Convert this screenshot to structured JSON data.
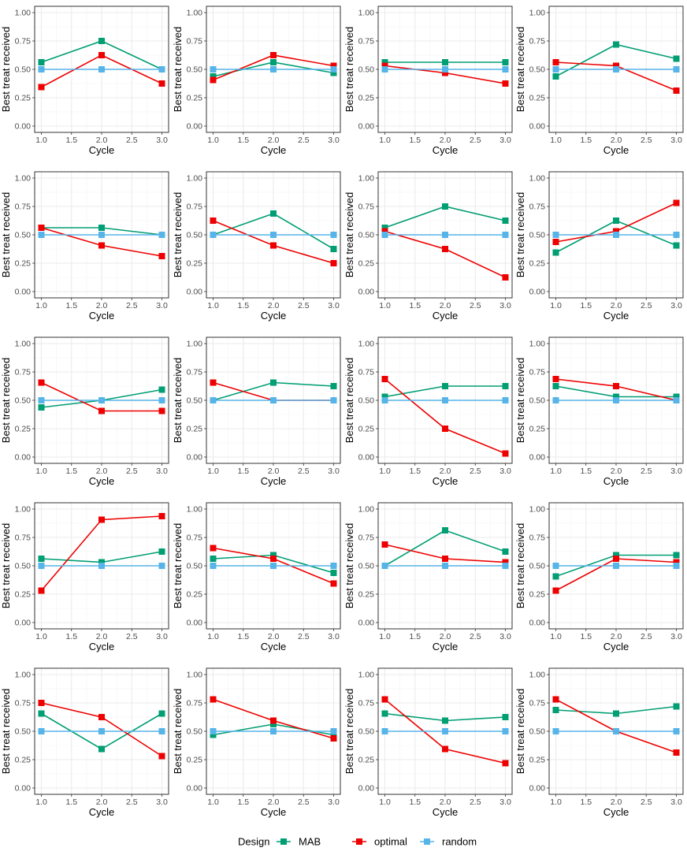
{
  "chart_data": {
    "type": "line",
    "layout": "small-multiples 5x4",
    "xlabel": "Cycle",
    "ylabel": "Best treat received",
    "x": [
      1,
      2,
      3
    ],
    "xlim": [
      1,
      3
    ],
    "ylim": [
      0,
      1
    ],
    "xticks": [
      "1.0",
      "1.5",
      "2.0",
      "2.5",
      "3.0"
    ],
    "yticks": [
      "0.00",
      "0.25",
      "0.50",
      "0.75",
      "1.00"
    ],
    "grid": true,
    "legend": {
      "title": "Design",
      "placement": "bottom",
      "entries": [
        {
          "name": "MAB",
          "color": "#009E73"
        },
        {
          "name": "optimal",
          "color": "#EE0000"
        },
        {
          "name": "random",
          "color": "#56B4E9"
        }
      ]
    },
    "panels": [
      {
        "series": [
          {
            "name": "MAB",
            "values": [
              0.5625,
              0.75,
              0.5
            ]
          },
          {
            "name": "optimal",
            "values": [
              0.34375,
              0.625,
              0.375
            ]
          },
          {
            "name": "random",
            "values": [
              0.5,
              0.5,
              0.5
            ]
          }
        ]
      },
      {
        "series": [
          {
            "name": "MAB",
            "values": [
              0.4375,
              0.5625,
              0.46875
            ]
          },
          {
            "name": "optimal",
            "values": [
              0.40625,
              0.625,
              0.53125
            ]
          },
          {
            "name": "random",
            "values": [
              0.5,
              0.5,
              0.5
            ]
          }
        ]
      },
      {
        "series": [
          {
            "name": "MAB",
            "values": [
              0.5625,
              0.5625,
              0.5625
            ]
          },
          {
            "name": "optimal",
            "values": [
              0.53125,
              0.46875,
              0.375
            ]
          },
          {
            "name": "random",
            "values": [
              0.5,
              0.5,
              0.5
            ]
          }
        ]
      },
      {
        "series": [
          {
            "name": "MAB",
            "values": [
              0.4375,
              0.71875,
              0.59375
            ]
          },
          {
            "name": "optimal",
            "values": [
              0.5625,
              0.53125,
              0.3125
            ]
          },
          {
            "name": "random",
            "values": [
              0.5,
              0.5,
              0.5
            ]
          }
        ]
      },
      {
        "series": [
          {
            "name": "MAB",
            "values": [
              0.5625,
              0.5625,
              0.5
            ]
          },
          {
            "name": "optimal",
            "values": [
              0.5625,
              0.40625,
              0.3125
            ]
          },
          {
            "name": "random",
            "values": [
              0.5,
              0.5,
              0.5
            ]
          }
        ]
      },
      {
        "series": [
          {
            "name": "MAB",
            "values": [
              0.5,
              0.6875,
              0.375
            ]
          },
          {
            "name": "optimal",
            "values": [
              0.625,
              0.40625,
              0.25
            ]
          },
          {
            "name": "random",
            "values": [
              0.5,
              0.5,
              0.5
            ]
          }
        ]
      },
      {
        "series": [
          {
            "name": "MAB",
            "values": [
              0.5625,
              0.75,
              0.625
            ]
          },
          {
            "name": "optimal",
            "values": [
              0.53125,
              0.375,
              0.125
            ]
          },
          {
            "name": "random",
            "values": [
              0.5,
              0.5,
              0.5
            ]
          }
        ]
      },
      {
        "series": [
          {
            "name": "MAB",
            "values": [
              0.34375,
              0.625,
              0.40625
            ]
          },
          {
            "name": "optimal",
            "values": [
              0.4375,
              0.53125,
              0.78125
            ]
          },
          {
            "name": "random",
            "values": [
              0.5,
              0.5,
              0.5
            ]
          }
        ]
      },
      {
        "series": [
          {
            "name": "MAB",
            "values": [
              0.4375,
              0.5,
              0.59375
            ]
          },
          {
            "name": "optimal",
            "values": [
              0.65625,
              0.40625,
              0.40625
            ]
          },
          {
            "name": "random",
            "values": [
              0.5,
              0.5,
              0.5
            ]
          }
        ]
      },
      {
        "series": [
          {
            "name": "MAB",
            "values": [
              0.5,
              0.65625,
              0.625
            ]
          },
          {
            "name": "optimal",
            "values": [
              0.65625,
              0.5,
              0.5
            ]
          },
          {
            "name": "random",
            "values": [
              0.5,
              0.5,
              0.5
            ]
          }
        ]
      },
      {
        "series": [
          {
            "name": "MAB",
            "values": [
              0.53125,
              0.625,
              0.625
            ]
          },
          {
            "name": "optimal",
            "values": [
              0.6875,
              0.25,
              0.03125
            ]
          },
          {
            "name": "random",
            "values": [
              0.5,
              0.5,
              0.5
            ]
          }
        ]
      },
      {
        "series": [
          {
            "name": "MAB",
            "values": [
              0.625,
              0.53125,
              0.53125
            ]
          },
          {
            "name": "optimal",
            "values": [
              0.6875,
              0.625,
              0.5
            ]
          },
          {
            "name": "random",
            "values": [
              0.5,
              0.5,
              0.5
            ]
          }
        ]
      },
      {
        "series": [
          {
            "name": "MAB",
            "values": [
              0.5625,
              0.53125,
              0.625
            ]
          },
          {
            "name": "optimal",
            "values": [
              0.28125,
              0.90625,
              0.9375
            ]
          },
          {
            "name": "random",
            "values": [
              0.5,
              0.5,
              0.5
            ]
          }
        ]
      },
      {
        "series": [
          {
            "name": "MAB",
            "values": [
              0.5625,
              0.59375,
              0.4375
            ]
          },
          {
            "name": "optimal",
            "values": [
              0.65625,
              0.5625,
              0.34375
            ]
          },
          {
            "name": "random",
            "values": [
              0.5,
              0.5,
              0.5
            ]
          }
        ]
      },
      {
        "series": [
          {
            "name": "MAB",
            "values": [
              0.5,
              0.8125,
              0.625
            ]
          },
          {
            "name": "optimal",
            "values": [
              0.6875,
              0.5625,
              0.53125
            ]
          },
          {
            "name": "random",
            "values": [
              0.5,
              0.5,
              0.5
            ]
          }
        ]
      },
      {
        "series": [
          {
            "name": "MAB",
            "values": [
              0.40625,
              0.59375,
              0.59375
            ]
          },
          {
            "name": "optimal",
            "values": [
              0.28125,
              0.5625,
              0.53125
            ]
          },
          {
            "name": "random",
            "values": [
              0.5,
              0.5,
              0.5
            ]
          }
        ]
      },
      {
        "series": [
          {
            "name": "MAB",
            "values": [
              0.65625,
              0.34375,
              0.65625
            ]
          },
          {
            "name": "optimal",
            "values": [
              0.75,
              0.625,
              0.28125
            ]
          },
          {
            "name": "random",
            "values": [
              0.5,
              0.5,
              0.5
            ]
          }
        ]
      },
      {
        "series": [
          {
            "name": "MAB",
            "values": [
              0.46875,
              0.5625,
              0.46875
            ]
          },
          {
            "name": "optimal",
            "values": [
              0.78125,
              0.59375,
              0.4375
            ]
          },
          {
            "name": "random",
            "values": [
              0.5,
              0.5,
              0.5
            ]
          }
        ]
      },
      {
        "series": [
          {
            "name": "MAB",
            "values": [
              0.65625,
              0.59375,
              0.625
            ]
          },
          {
            "name": "optimal",
            "values": [
              0.78125,
              0.34375,
              0.21875
            ]
          },
          {
            "name": "random",
            "values": [
              0.5,
              0.5,
              0.5
            ]
          }
        ]
      },
      {
        "series": [
          {
            "name": "MAB",
            "values": [
              0.6875,
              0.65625,
              0.71875
            ]
          },
          {
            "name": "optimal",
            "values": [
              0.78125,
              0.5,
              0.3125
            ]
          },
          {
            "name": "random",
            "values": [
              0.5,
              0.5,
              0.5
            ]
          }
        ]
      }
    ]
  }
}
